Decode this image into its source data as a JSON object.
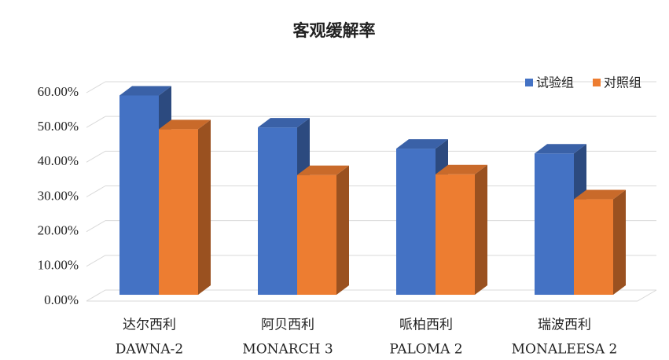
{
  "chart_data": {
    "type": "bar3d",
    "title": "客观缓解率",
    "categories": [
      [
        "达尔西利",
        "DAWNA-2"
      ],
      [
        "阿贝西利",
        "MONARCH 3"
      ],
      [
        "哌柏西利",
        "PALOMA 2"
      ],
      [
        "瑞波西利",
        "MONALEESA 2"
      ]
    ],
    "series": [
      {
        "name": "试验组",
        "color": "#4472c4",
        "values": [
          57.4,
          48.2,
          42.1,
          40.7
        ]
      },
      {
        "name": "对照组",
        "color": "#ed7d31",
        "values": [
          47.7,
          34.5,
          34.7,
          27.5
        ]
      }
    ],
    "ylim": [
      0,
      60
    ],
    "yticks": [
      {
        "value": 0,
        "label": "0.00%"
      },
      {
        "value": 10,
        "label": "10.00%"
      },
      {
        "value": 20,
        "label": "20.00%"
      },
      {
        "value": 30,
        "label": "30.00%"
      },
      {
        "value": 40,
        "label": "40.00%"
      },
      {
        "value": 50,
        "label": "50.00%"
      },
      {
        "value": 60,
        "label": "60.00%"
      }
    ],
    "grid": true,
    "legend": "top-right"
  }
}
